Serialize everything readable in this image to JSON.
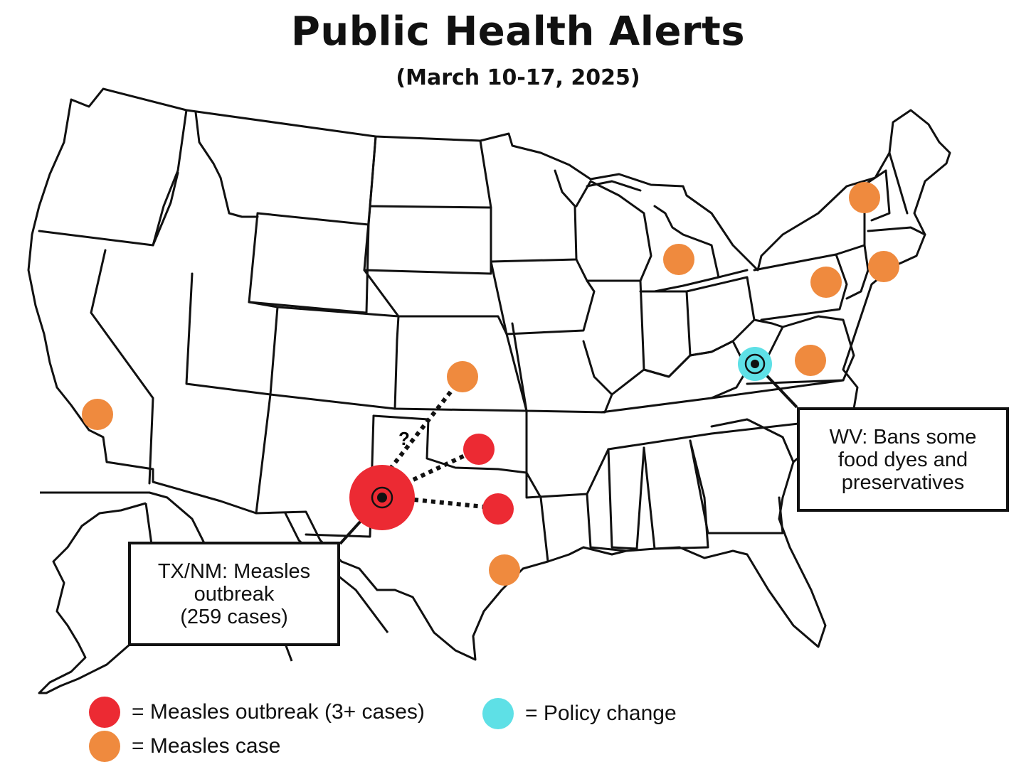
{
  "title": "Public Health Alerts",
  "subtitle": "(March 10-17, 2025)",
  "colors": {
    "outbreak": "#ec2a33",
    "case": "#ef8a3e",
    "policy": "#5ee0e6",
    "outline": "#111111"
  },
  "callouts": {
    "tx_nm": {
      "lines": [
        "TX/NM: Measles",
        "outbreak",
        "(259 cases)"
      ]
    },
    "wv": {
      "lines": [
        "WV: Bans some",
        "food dyes and",
        "preservatives"
      ]
    }
  },
  "uncertain_link_label": "?",
  "legend": {
    "outbreak": "= Measles outbreak (3+ cases)",
    "case": "= Measles case",
    "policy": "= Policy change"
  },
  "markers": [
    {
      "id": "tx-nm-outbreak-center",
      "kind": "outbreak",
      "size": "large"
    },
    {
      "id": "oklahoma",
      "kind": "outbreak"
    },
    {
      "id": "texas-north",
      "kind": "outbreak"
    },
    {
      "id": "texas-houston",
      "kind": "case"
    },
    {
      "id": "kansas",
      "kind": "case"
    },
    {
      "id": "california",
      "kind": "case"
    },
    {
      "id": "michigan",
      "kind": "case"
    },
    {
      "id": "vermont",
      "kind": "case"
    },
    {
      "id": "pennsylvania",
      "kind": "case"
    },
    {
      "id": "new-jersey",
      "kind": "case"
    },
    {
      "id": "virginia",
      "kind": "case"
    },
    {
      "id": "west-virginia",
      "kind": "policy"
    }
  ]
}
